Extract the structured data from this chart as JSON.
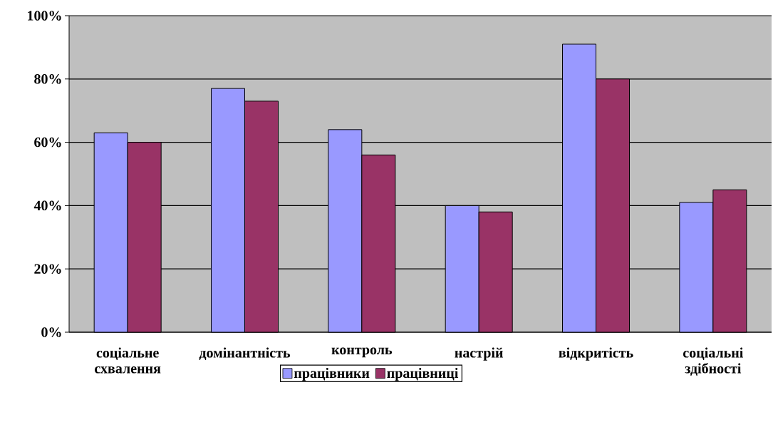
{
  "chart_data": {
    "type": "bar",
    "categories": [
      "соціальне схвалення",
      "домінантність",
      "контроль",
      "настрій",
      "відкритість",
      "соціальні здібності"
    ],
    "series": [
      {
        "name": "працівники",
        "color": "#9999ff",
        "values": [
          63,
          77,
          64,
          40,
          91,
          41
        ]
      },
      {
        "name": "працівниці",
        "color": "#993366",
        "values": [
          60,
          73,
          56,
          38,
          80,
          45
        ]
      }
    ],
    "ylim": [
      0,
      100
    ],
    "yticks": [
      {
        "value": 0,
        "label": "0%"
      },
      {
        "value": 20,
        "label": "20%"
      },
      {
        "value": 40,
        "label": "40%"
      },
      {
        "value": 60,
        "label": "60%"
      },
      {
        "value": 80,
        "label": "80%"
      },
      {
        "value": 100,
        "label": "100%"
      }
    ],
    "grid": "y",
    "legend": "bottom"
  }
}
